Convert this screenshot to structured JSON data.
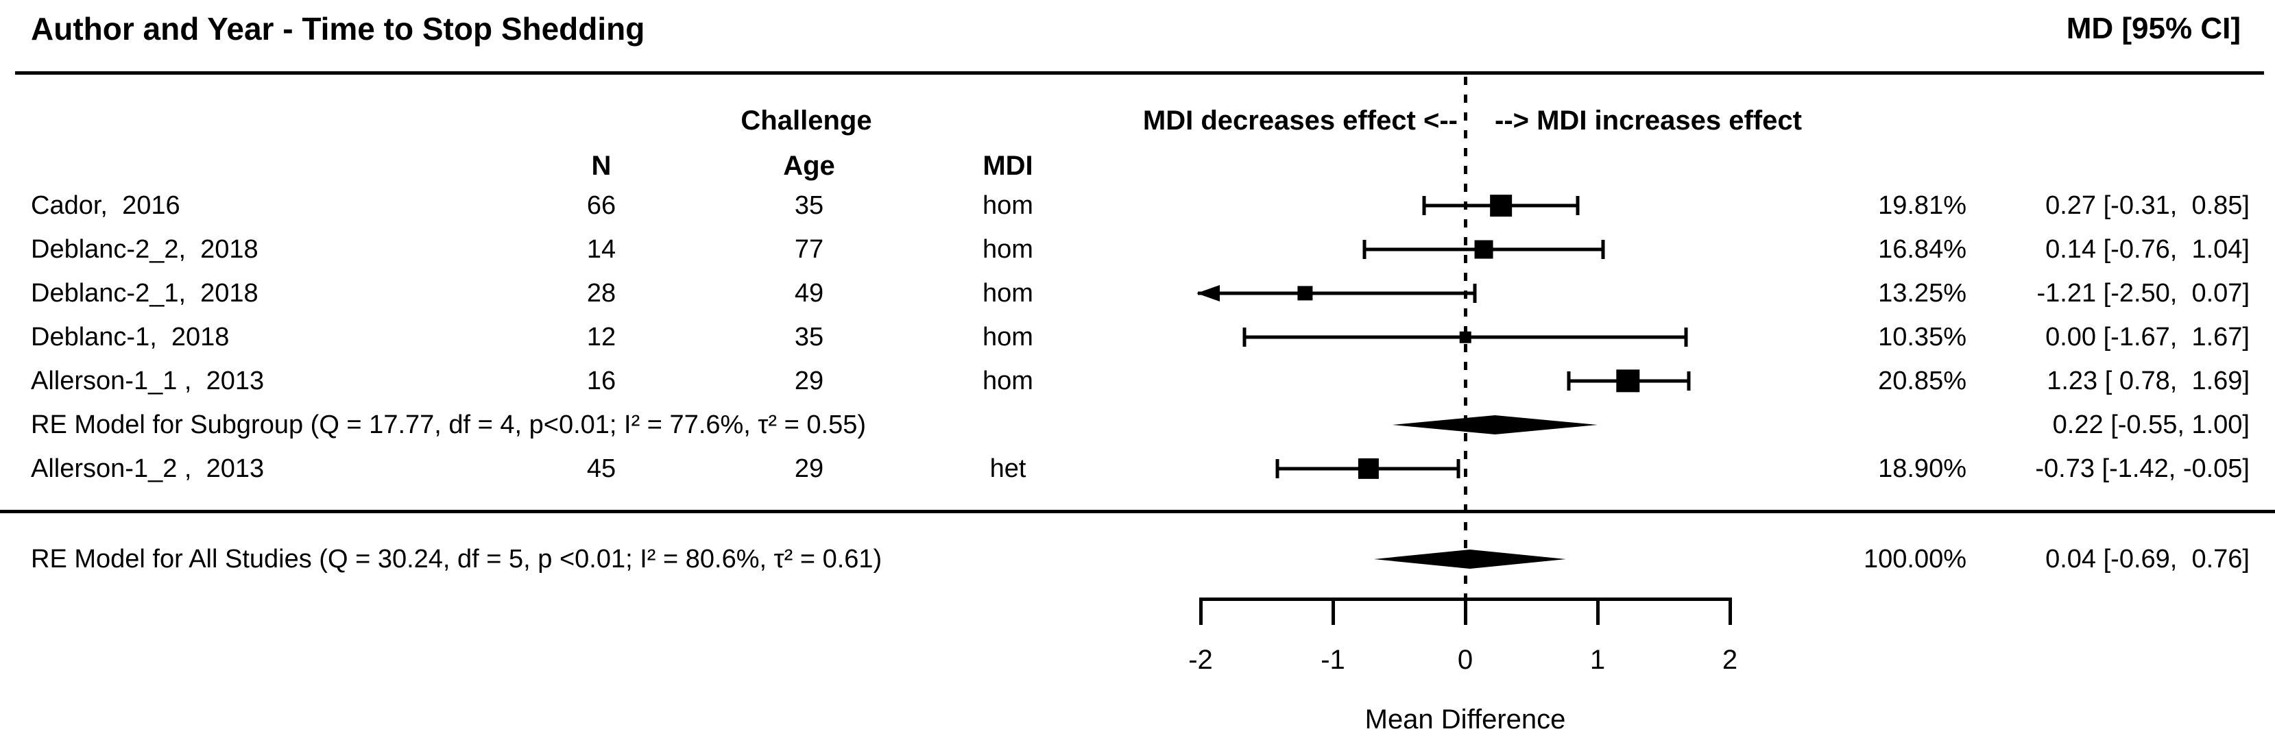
{
  "header": {
    "title": "Author and Year - Time to Stop Shedding",
    "effect_label": "MD [95% CI]"
  },
  "column_headers": {
    "challenge": "Challenge",
    "n": "N",
    "age": "Age",
    "mdi": "MDI"
  },
  "direction_labels": {
    "left": "MDI decreases effect <--",
    "right": "--> MDI increases effect"
  },
  "chart_data": {
    "type": "forest",
    "xlabel": "Mean Difference",
    "axis_ticks": [
      -2,
      -1,
      0,
      1,
      2
    ],
    "xlim": [
      -2.02,
      2.45
    ],
    "zero_line": 0,
    "studies": [
      {
        "type": "study",
        "label": "Cador,  2016",
        "n": "66",
        "age": "35",
        "mdi": "hom",
        "weight": "19.81%",
        "weight_pct": 19.81,
        "md": 0.27,
        "ci_lower": -0.31,
        "ci_upper": 0.85,
        "estimate_label": "0.27 [-0.31,  0.85]"
      },
      {
        "type": "study",
        "label": "Deblanc-2_2,  2018",
        "n": "14",
        "age": "77",
        "mdi": "hom",
        "weight": "16.84%",
        "weight_pct": 16.84,
        "md": 0.14,
        "ci_lower": -0.76,
        "ci_upper": 1.04,
        "estimate_label": "0.14 [-0.76,  1.04]"
      },
      {
        "type": "study",
        "label": "Deblanc-2_1,  2018",
        "n": "28",
        "age": "49",
        "mdi": "hom",
        "weight": "13.25%",
        "weight_pct": 13.25,
        "md": -1.21,
        "ci_lower": -2.5,
        "ci_upper": 0.07,
        "estimate_label": "-1.21 [-2.50,  0.07]"
      },
      {
        "type": "study",
        "label": "Deblanc-1,  2018",
        "n": "12",
        "age": "35",
        "mdi": "hom",
        "weight": "10.35%",
        "weight_pct": 10.35,
        "md": 0.0,
        "ci_lower": -1.67,
        "ci_upper": 1.67,
        "estimate_label": "0.00 [-1.67,  1.67]"
      },
      {
        "type": "study",
        "label": "Allerson-1_1 ,  2013",
        "n": "16",
        "age": "29",
        "mdi": "hom",
        "weight": "20.85%",
        "weight_pct": 20.85,
        "md": 1.23,
        "ci_lower": 0.78,
        "ci_upper": 1.69,
        "estimate_label": "1.23 [ 0.78,  1.69]"
      },
      {
        "type": "summary",
        "label": "RE Model for Subgroup (Q = 17.77, df = 4, p<0.01; I² = 77.6%, τ² = 0.55)",
        "md": 0.22,
        "ci_lower": -0.55,
        "ci_upper": 1.0,
        "estimate_label": "0.22 [-0.55, 1.00]"
      },
      {
        "type": "study",
        "label": "Allerson-1_2 ,  2013",
        "n": "45",
        "age": "29",
        "mdi": "het",
        "weight": "18.90%",
        "weight_pct": 18.9,
        "md": -0.73,
        "ci_lower": -1.42,
        "ci_upper": -0.05,
        "estimate_label": "-0.73 [-1.42, -0.05]"
      }
    ],
    "overall": {
      "type": "summary",
      "label": "RE Model for All Studies (Q = 30.24, df = 5, p <0.01; I² = 80.6%, τ² = 0.61)",
      "weight": "100.00%",
      "weight_pct": 100.0,
      "md": 0.04,
      "ci_lower": -0.69,
      "ci_upper": 0.76,
      "estimate_label": "0.04 [-0.69,  0.76]"
    }
  }
}
